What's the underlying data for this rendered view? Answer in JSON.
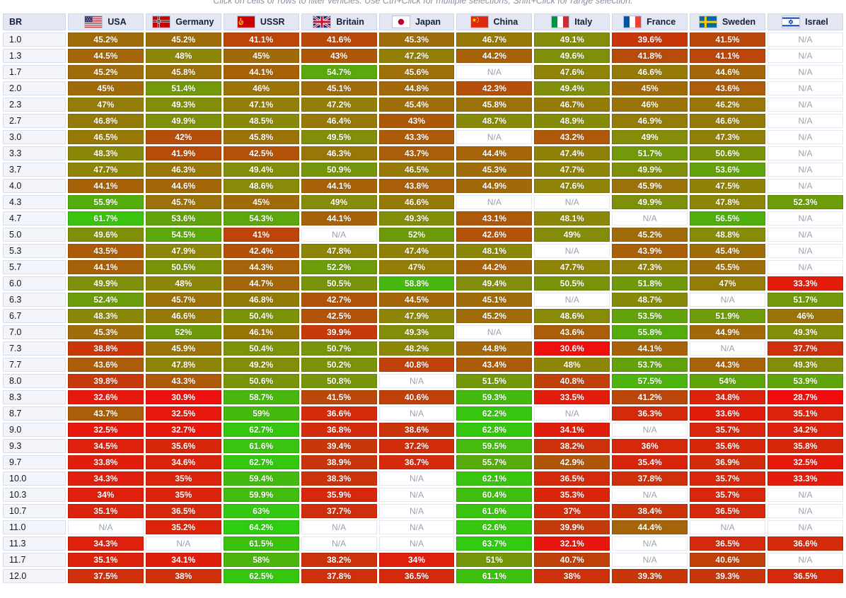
{
  "note": "Click on cells or rows to filter vehicles. Use Ctrl+Click for multiple selections, Shift+Click for range selection.",
  "table": {
    "br_header": "BR",
    "na_label": "N/A",
    "columns": [
      {
        "name": "usa",
        "label": "USA"
      },
      {
        "name": "germany",
        "label": "Germany"
      },
      {
        "name": "ussr",
        "label": "USSR"
      },
      {
        "name": "britain",
        "label": "Britain"
      },
      {
        "name": "japan",
        "label": "Japan"
      },
      {
        "name": "china",
        "label": "China"
      },
      {
        "name": "italy",
        "label": "Italy"
      },
      {
        "name": "france",
        "label": "France"
      },
      {
        "name": "sweden",
        "label": "Sweden"
      },
      {
        "name": "israel",
        "label": "Israel"
      }
    ],
    "rows": [
      {
        "br": "1.0",
        "values": [
          45.2,
          45.2,
          41.1,
          41.6,
          45.3,
          46.7,
          49.1,
          39.6,
          41.5,
          null
        ]
      },
      {
        "br": "1.3",
        "values": [
          44.5,
          48,
          45,
          43,
          47.2,
          44.2,
          49.6,
          41.8,
          41.1,
          null
        ]
      },
      {
        "br": "1.7",
        "values": [
          45.2,
          45.8,
          44.1,
          54.7,
          45.6,
          null,
          47.6,
          46.6,
          44.6,
          null
        ]
      },
      {
        "br": "2.0",
        "values": [
          45,
          51.4,
          46,
          45.1,
          44.8,
          42.3,
          49.4,
          45,
          43.6,
          null
        ]
      },
      {
        "br": "2.3",
        "values": [
          47,
          49.3,
          47.1,
          47.2,
          45.4,
          45.8,
          46.7,
          46,
          46.2,
          null
        ]
      },
      {
        "br": "2.7",
        "values": [
          46.8,
          49.9,
          48.5,
          46.4,
          43,
          48.7,
          48.9,
          46.9,
          46.6,
          null
        ]
      },
      {
        "br": "3.0",
        "values": [
          46.5,
          42,
          45.8,
          49.5,
          43.3,
          null,
          43.2,
          49,
          47.3,
          null
        ]
      },
      {
        "br": "3.3",
        "values": [
          48.3,
          41.9,
          42.5,
          46.3,
          43.7,
          44.4,
          47.4,
          51.7,
          50.6,
          null
        ]
      },
      {
        "br": "3.7",
        "values": [
          47.7,
          46.3,
          49.4,
          50.9,
          46.5,
          45.3,
          47.7,
          49.9,
          53.6,
          null
        ]
      },
      {
        "br": "4.0",
        "values": [
          44.1,
          44.6,
          48.6,
          44.1,
          43.8,
          44.9,
          47.6,
          45.9,
          47.5,
          null
        ]
      },
      {
        "br": "4.3",
        "values": [
          55.9,
          45.7,
          45,
          49,
          46.6,
          null,
          null,
          49.9,
          47.8,
          52.3
        ]
      },
      {
        "br": "4.7",
        "values": [
          61.7,
          53.6,
          54.3,
          44.1,
          49.3,
          43.1,
          48.1,
          null,
          56.5,
          null
        ]
      },
      {
        "br": "5.0",
        "values": [
          49.6,
          54.5,
          41,
          null,
          52,
          42.6,
          49,
          45.2,
          48.8,
          null
        ]
      },
      {
        "br": "5.3",
        "values": [
          43.5,
          47.9,
          42.4,
          47.8,
          47.4,
          48.1,
          null,
          43.9,
          45.4,
          null
        ]
      },
      {
        "br": "5.7",
        "values": [
          44.1,
          50.5,
          44.3,
          52.2,
          47,
          44.2,
          47.7,
          47.3,
          45.5,
          null
        ]
      },
      {
        "br": "6.0",
        "values": [
          49.9,
          48,
          44.7,
          50.5,
          58.8,
          49.4,
          50.5,
          51.8,
          47,
          33.3
        ]
      },
      {
        "br": "6.3",
        "values": [
          52.4,
          45.7,
          46.8,
          42.7,
          44.5,
          45.1,
          null,
          48.7,
          null,
          51.7
        ]
      },
      {
        "br": "6.7",
        "values": [
          48.3,
          46.6,
          50.4,
          42.5,
          47.9,
          45.2,
          48.6,
          53.5,
          51.9,
          46
        ]
      },
      {
        "br": "7.0",
        "values": [
          45.3,
          52,
          46.1,
          39.9,
          49.3,
          null,
          43.6,
          55.8,
          44.9,
          49.3
        ]
      },
      {
        "br": "7.3",
        "values": [
          38.8,
          45.9,
          50.4,
          50.7,
          48.2,
          44.8,
          30.6,
          44.1,
          null,
          37.7
        ]
      },
      {
        "br": "7.7",
        "values": [
          43.6,
          47.8,
          49.2,
          50.2,
          40.8,
          43.4,
          48,
          53.7,
          44.3,
          49.3
        ]
      },
      {
        "br": "8.0",
        "values": [
          39.8,
          43.3,
          50.6,
          50.8,
          null,
          51.5,
          40.8,
          57.5,
          54,
          53.9
        ]
      },
      {
        "br": "8.3",
        "values": [
          32.6,
          30.9,
          58.7,
          41.5,
          40.6,
          59.3,
          33.5,
          41.2,
          34.8,
          28.7
        ]
      },
      {
        "br": "8.7",
        "values": [
          43.7,
          32.5,
          59,
          36.6,
          null,
          62.2,
          null,
          36.3,
          33.6,
          35.1
        ]
      },
      {
        "br": "9.0",
        "values": [
          32.5,
          32.7,
          62.7,
          36.8,
          38.6,
          62.8,
          34.1,
          null,
          35.7,
          34.2
        ]
      },
      {
        "br": "9.3",
        "values": [
          34.5,
          35.6,
          61.6,
          39.4,
          37.2,
          59.5,
          38.2,
          36,
          35.6,
          35.8
        ]
      },
      {
        "br": "9.7",
        "values": [
          33.8,
          34.6,
          62.7,
          38.9,
          36.7,
          55.7,
          42.9,
          35.4,
          36.9,
          32.5
        ]
      },
      {
        "br": "10.0",
        "values": [
          34.3,
          35,
          59.4,
          38.3,
          null,
          62.1,
          36.5,
          37.8,
          35.7,
          33.3
        ]
      },
      {
        "br": "10.3",
        "values": [
          34,
          35,
          59.9,
          35.9,
          null,
          60.4,
          35.3,
          null,
          35.7,
          null
        ]
      },
      {
        "br": "10.7",
        "values": [
          35.1,
          36.5,
          63,
          37.7,
          null,
          61.6,
          37,
          38.4,
          36.5,
          null
        ]
      },
      {
        "br": "11.0",
        "values": [
          null,
          35.2,
          64.2,
          null,
          null,
          62.6,
          39.9,
          44.4,
          null,
          null
        ]
      },
      {
        "br": "11.3",
        "values": [
          34.3,
          null,
          61.5,
          null,
          null,
          63.7,
          32.1,
          null,
          36.5,
          36.6
        ]
      },
      {
        "br": "11.7",
        "values": [
          35.1,
          34.1,
          58,
          38.2,
          34,
          51,
          40.7,
          null,
          40.6,
          null
        ]
      },
      {
        "br": "12.0",
        "values": [
          37.5,
          38,
          62.5,
          37.8,
          36.5,
          61.1,
          38,
          39.3,
          39.3,
          36.5
        ]
      }
    ]
  },
  "colors": {
    "header_bg": "#e3e7f3",
    "row_label_bg": "#f3f5fb",
    "na_text": "#9aa1ae",
    "cell_text": "#ffffff",
    "scale_stops": [
      [
        30,
        "#f20d0d"
      ],
      [
        40,
        "#c43a0a"
      ],
      [
        48,
        "#8c8708"
      ],
      [
        55,
        "#58a90c"
      ],
      [
        65,
        "#2bd011"
      ]
    ]
  }
}
